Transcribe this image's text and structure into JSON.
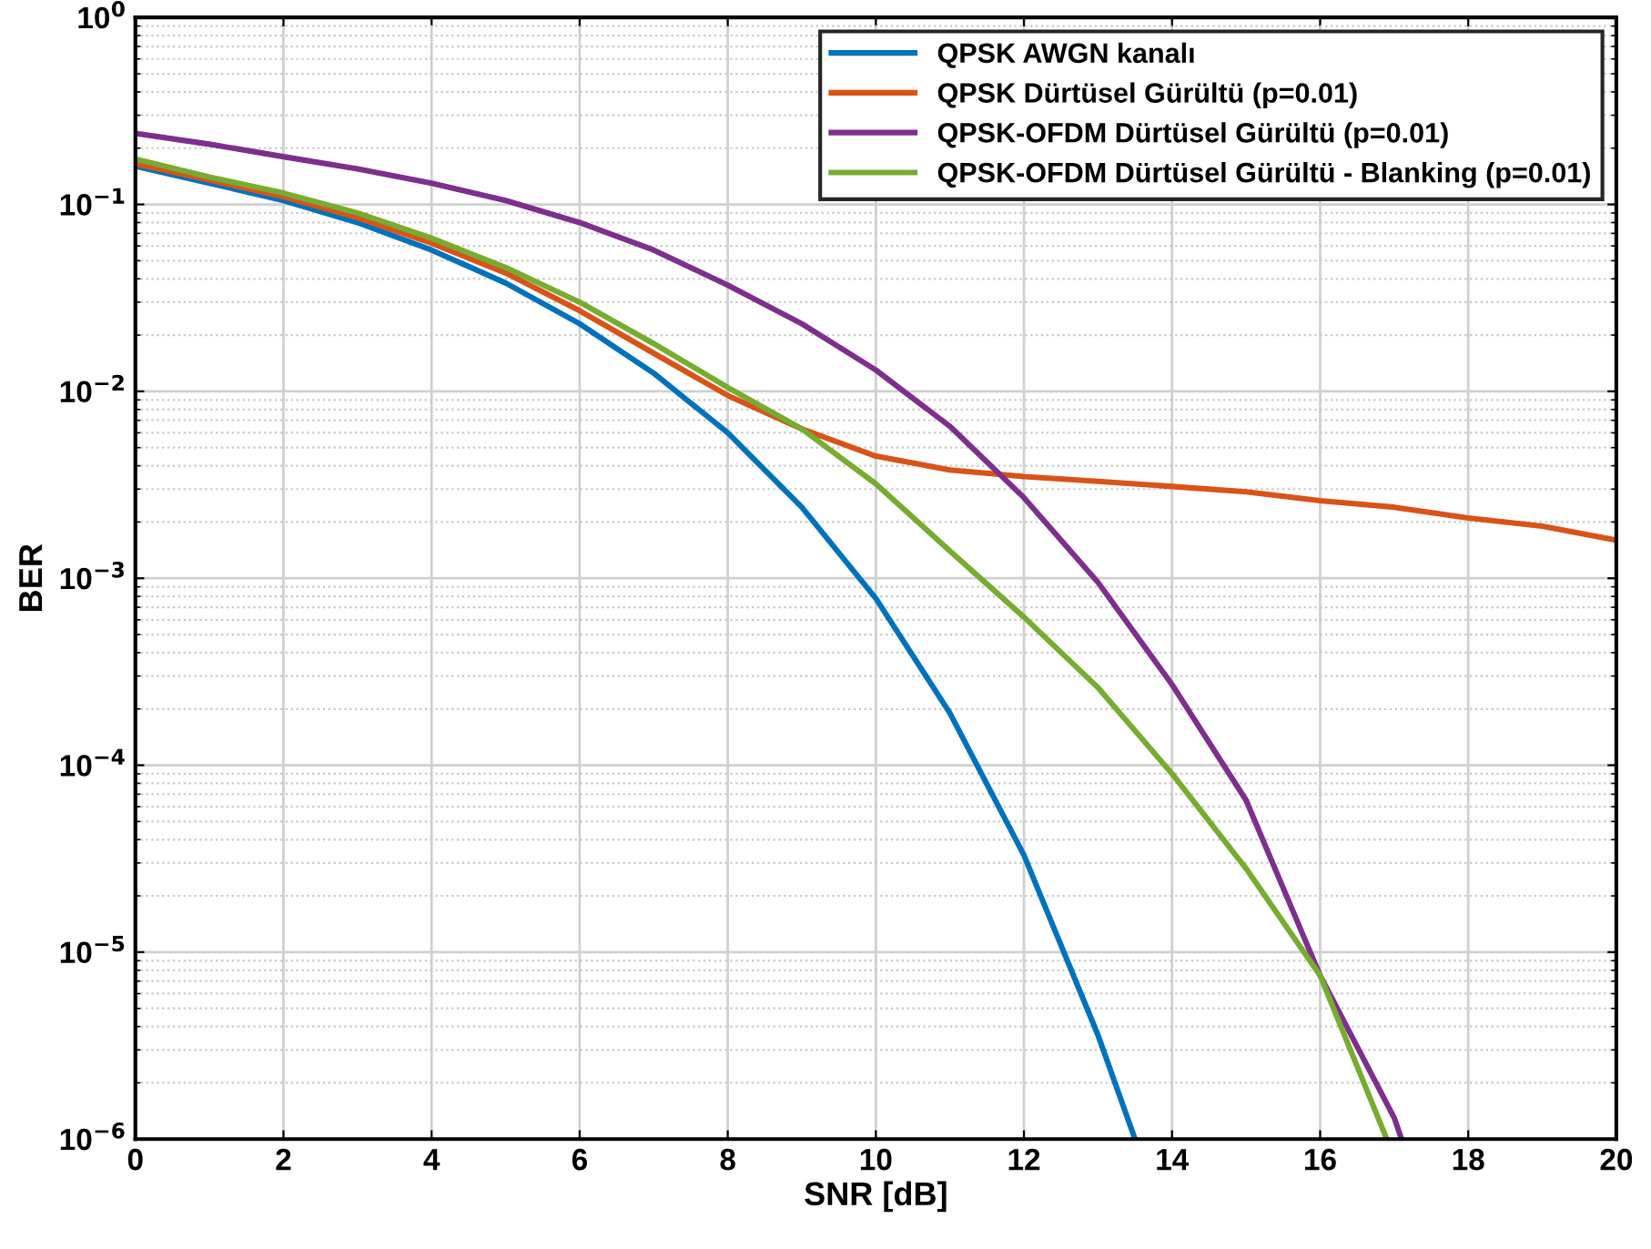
{
  "chart_data": {
    "type": "line",
    "xlabel": "SNR [dB]",
    "ylabel": "BER",
    "log": "y",
    "xlim": [
      0,
      20
    ],
    "xticks": [
      0,
      2,
      4,
      6,
      8,
      10,
      12,
      14,
      16,
      18,
      20
    ],
    "ylim": [
      1e-06,
      1
    ],
    "yticks": [
      {
        "value": 1e-06,
        "label": "10$^{−6}$"
      },
      {
        "value": 1e-05,
        "label": "10$^{−5}$"
      },
      {
        "value": 0.0001,
        "label": "10$^{−4}$"
      },
      {
        "value": 0.001,
        "label": "10$^{−3}$"
      },
      {
        "value": 0.01,
        "label": "10$^{−2}$"
      },
      {
        "value": 0.1,
        "label": "10$^{−1}$"
      },
      {
        "value": 1,
        "label": "10$^{0}$"
      }
    ],
    "grid": true,
    "legend": "top right",
    "marker": "none",
    "line_style": "solid",
    "series": [
      {
        "name": "QPSK AWGN kanalı",
        "color": "#0072bd",
        "x": [
          0,
          1,
          2,
          3,
          4,
          5,
          6,
          7,
          8,
          9,
          10,
          11,
          12,
          13,
          13.5
        ],
        "values": [
          0.16,
          0.13,
          0.105,
          0.08,
          0.057,
          0.038,
          0.023,
          0.0125,
          0.006,
          0.0024,
          0.00078,
          0.00019,
          3.3e-05,
          3.6e-06,
          1e-06
        ]
      },
      {
        "name": "QPSK Dürtüsel Gürültü (p=0.01)",
        "color": "#d95319",
        "x": [
          0,
          1,
          2,
          3,
          4,
          5,
          6,
          7,
          8,
          9,
          10,
          11,
          12,
          13,
          14,
          15,
          16,
          17,
          18,
          19,
          20
        ],
        "values": [
          0.165,
          0.135,
          0.11,
          0.085,
          0.062,
          0.043,
          0.027,
          0.016,
          0.0095,
          0.0063,
          0.0045,
          0.0038,
          0.0035,
          0.0033,
          0.0031,
          0.0029,
          0.0026,
          0.0024,
          0.0021,
          0.0019,
          0.0016
        ]
      },
      {
        "name": "QPSK-OFDM Dürtüsel Gürültü (p=0.01)",
        "color": "#7e2f8e",
        "x": [
          0,
          1,
          2,
          3,
          4,
          5,
          6,
          7,
          8,
          9,
          10,
          11,
          12,
          13,
          14,
          15,
          16,
          17,
          17.1
        ],
        "values": [
          0.24,
          0.21,
          0.18,
          0.155,
          0.13,
          0.105,
          0.08,
          0.057,
          0.037,
          0.023,
          0.013,
          0.0065,
          0.0027,
          0.00095,
          0.00027,
          6.5e-05,
          7.5e-06,
          1.3e-06,
          1e-06
        ]
      },
      {
        "name": "QPSK-OFDM Dürtüsel Gürültü - Blanking (p=0.01)",
        "color": "#77ac30",
        "x": [
          0,
          1,
          2,
          3,
          4,
          5,
          6,
          7,
          8,
          9,
          10,
          11,
          12,
          13,
          14,
          15,
          16,
          16.9
        ],
        "values": [
          0.175,
          0.14,
          0.115,
          0.09,
          0.066,
          0.046,
          0.03,
          0.018,
          0.0105,
          0.0063,
          0.0032,
          0.0014,
          0.00062,
          0.00026,
          9e-05,
          2.8e-05,
          7.5e-06,
          1e-06
        ]
      }
    ]
  }
}
